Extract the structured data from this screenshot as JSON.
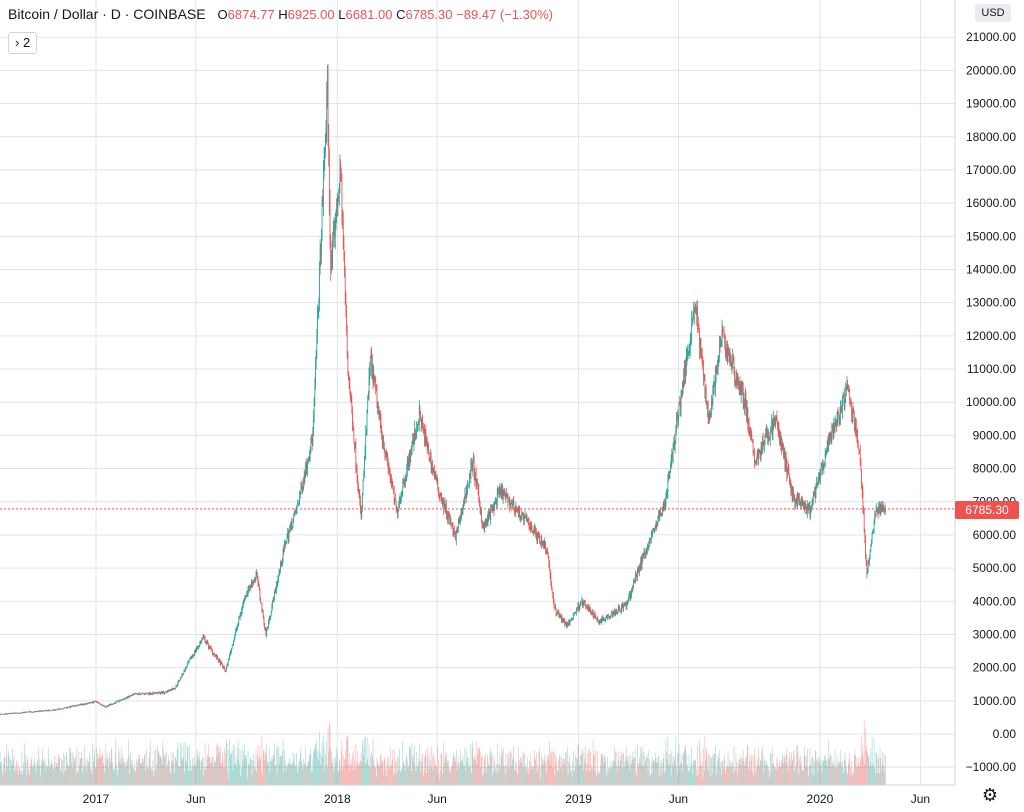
{
  "legend": {
    "symbol": "Bitcoin / Dollar · D · COINBASE",
    "o_label": "O",
    "o_value": "6874.77",
    "h_label": "H",
    "h_value": "6925.00",
    "l_label": "L",
    "l_value": "6681.00",
    "c_label": "C",
    "c_value": "6785.30",
    "change": "−89.47 (−1.30%)"
  },
  "indicator_badge": "› 2",
  "currency_button": "USD",
  "last_price_tag": "6785.30",
  "colors": {
    "up": "#26a69a",
    "down": "#ef5350",
    "grid": "#e0e3eb"
  },
  "chart_data": {
    "type": "candlestick",
    "symbol": "Bitcoin / Dollar",
    "interval": "D",
    "exchange": "COINBASE",
    "y_ticks": [
      -1000,
      0,
      1000,
      2000,
      3000,
      4000,
      5000,
      6000,
      7000,
      8000,
      9000,
      10000,
      11000,
      12000,
      13000,
      14000,
      15000,
      16000,
      17000,
      18000,
      19000,
      20000,
      21000
    ],
    "y_tick_labels": [
      "−1000.00",
      "0.00",
      "1000.00",
      "2000.00",
      "3000.00",
      "4000.00",
      "5000.00",
      "6000.00",
      "7000.00",
      "8000.00",
      "9000.00",
      "10000.00",
      "11000.00",
      "12000.00",
      "13000.00",
      "14000.00",
      "15000.00",
      "16000.00",
      "17000.00",
      "18000.00",
      "19000.00",
      "20000.00",
      "21000.00"
    ],
    "x_ticks": [
      "2017",
      "Jun",
      "2018",
      "Jun",
      "2019",
      "Jun",
      "2020",
      "Jun"
    ],
    "x_tick_dates": [
      "2017-01-01",
      "2017-06-01",
      "2018-01-01",
      "2018-06-01",
      "2019-01-01",
      "2019-06-01",
      "2020-01-01",
      "2020-06-01"
    ],
    "last_price": 6785.3,
    "price_points": [
      [
        "2016-05-01",
        450
      ],
      [
        "2016-08-01",
        580
      ],
      [
        "2016-11-01",
        730
      ],
      [
        "2017-01-01",
        980
      ],
      [
        "2017-01-15",
        820
      ],
      [
        "2017-03-01",
        1200
      ],
      [
        "2017-04-15",
        1250
      ],
      [
        "2017-05-01",
        1400
      ],
      [
        "2017-05-25",
        2300
      ],
      [
        "2017-06-12",
        2900
      ],
      [
        "2017-07-16",
        1900
      ],
      [
        "2017-08-15",
        4200
      ],
      [
        "2017-09-01",
        4800
      ],
      [
        "2017-09-15",
        3000
      ],
      [
        "2017-10-15",
        5800
      ],
      [
        "2017-11-01",
        6800
      ],
      [
        "2017-11-25",
        9000
      ],
      [
        "2017-12-17",
        19500
      ],
      [
        "2017-12-22",
        14000
      ],
      [
        "2018-01-06",
        17000
      ],
      [
        "2018-01-17",
        11000
      ],
      [
        "2018-02-06",
        6500
      ],
      [
        "2018-02-20",
        11300
      ],
      [
        "2018-03-10",
        9000
      ],
      [
        "2018-04-01",
        6700
      ],
      [
        "2018-05-05",
        9600
      ],
      [
        "2018-06-01",
        7500
      ],
      [
        "2018-06-29",
        5900
      ],
      [
        "2018-07-25",
        8200
      ],
      [
        "2018-08-10",
        6200
      ],
      [
        "2018-09-05",
        7300
      ],
      [
        "2018-10-15",
        6400
      ],
      [
        "2018-11-14",
        5600
      ],
      [
        "2018-11-25",
        3800
      ],
      [
        "2018-12-15",
        3250
      ],
      [
        "2019-01-05",
        4000
      ],
      [
        "2019-02-01",
        3400
      ],
      [
        "2019-03-15",
        3900
      ],
      [
        "2019-04-02",
        5000
      ],
      [
        "2019-05-12",
        7000
      ],
      [
        "2019-06-26",
        13000
      ],
      [
        "2019-07-17",
        9500
      ],
      [
        "2019-08-06",
        12000
      ],
      [
        "2019-09-10",
        10000
      ],
      [
        "2019-09-24",
        8200
      ],
      [
        "2019-10-26",
        9500
      ],
      [
        "2019-11-22",
        7100
      ],
      [
        "2019-12-17",
        6700
      ],
      [
        "2020-01-15",
        8800
      ],
      [
        "2020-02-12",
        10400
      ],
      [
        "2020-03-01",
        8600
      ],
      [
        "2020-03-12",
        4800
      ],
      [
        "2020-03-25",
        6700
      ],
      [
        "2020-04-09",
        6785.3
      ]
    ]
  }
}
